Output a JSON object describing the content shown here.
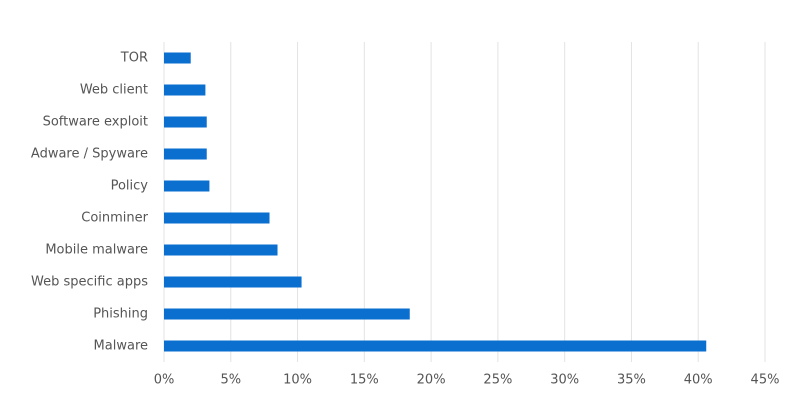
{
  "chart_data": {
    "type": "bar",
    "orientation": "horizontal",
    "categories": [
      "TOR",
      "Web client",
      "Software exploit",
      "Adware / Spyware",
      "Policy",
      "Coinminer",
      "Mobile malware",
      "Web specific apps",
      "Phishing",
      "Malware"
    ],
    "values": [
      2.0,
      3.1,
      3.2,
      3.2,
      3.4,
      7.9,
      8.5,
      10.3,
      18.4,
      40.6
    ],
    "color": "#0a6fcf",
    "xlim": [
      0,
      45
    ],
    "xticks": [
      {
        "value": 0,
        "label": "0%"
      },
      {
        "value": 5,
        "label": "5%"
      },
      {
        "value": 10,
        "label": "10%"
      },
      {
        "value": 15,
        "label": "15%"
      },
      {
        "value": 20,
        "label": "20%"
      },
      {
        "value": 25,
        "label": "25%"
      },
      {
        "value": 30,
        "label": "30%"
      },
      {
        "value": 35,
        "label": "35%"
      },
      {
        "value": 40,
        "label": "40%"
      },
      {
        "value": 45,
        "label": "45%"
      }
    ],
    "grid": true
  }
}
